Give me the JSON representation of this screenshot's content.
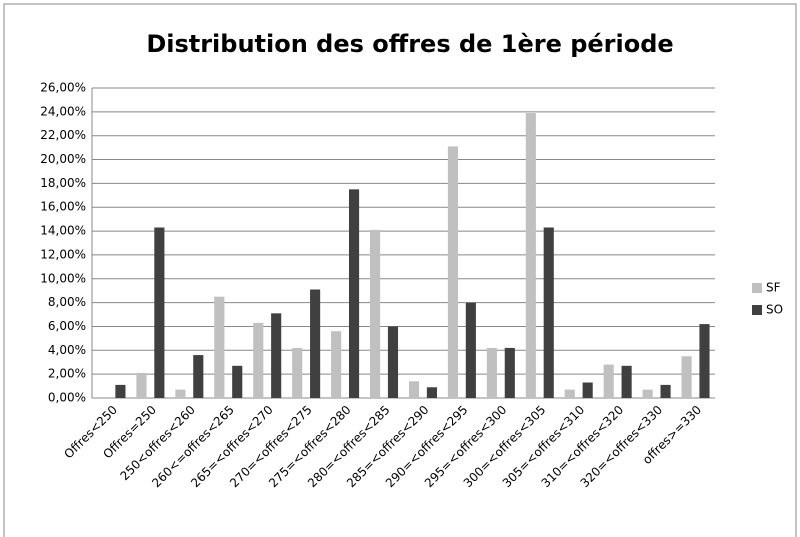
{
  "chart_data": {
    "type": "bar",
    "title": "Distribution des offres de 1ère période",
    "categories": [
      "Offres<250",
      "Offres=250",
      "250<offres<260",
      "260<=offres<265",
      "265=<offres<270",
      "270=<offres<275",
      "275=<offres<280",
      "280=<offres<285",
      "285=<offres<290",
      "290=<offres<295",
      "295=<offres<300",
      "300=<offres<305",
      "305=<offres<310",
      "310=<offres<320",
      "320=<offres<330",
      "offres>=330"
    ],
    "series": [
      {
        "name": "SF",
        "color": "#c0c0c0",
        "values": [
          0,
          2.1,
          0.7,
          8.5,
          6.3,
          4.2,
          5.6,
          14.1,
          1.4,
          21.1,
          4.2,
          23.9,
          0.7,
          2.8,
          0.7,
          3.5
        ]
      },
      {
        "name": "SO",
        "color": "#404040",
        "values": [
          1.1,
          14.3,
          3.6,
          2.7,
          7.1,
          9.1,
          17.5,
          6.0,
          0.9,
          8.0,
          4.2,
          14.3,
          1.3,
          2.7,
          1.1,
          6.2
        ]
      }
    ],
    "ylim": [
      0,
      26
    ],
    "yticks": [
      {
        "value": 0,
        "label": "0,00%"
      },
      {
        "value": 2,
        "label": "2,00%"
      },
      {
        "value": 4,
        "label": "4,00%"
      },
      {
        "value": 6,
        "label": "6,00%"
      },
      {
        "value": 8,
        "label": "8,00%"
      },
      {
        "value": 10,
        "label": "10,00%"
      },
      {
        "value": 12,
        "label": "12,00%"
      },
      {
        "value": 14,
        "label": "14,00%"
      },
      {
        "value": 16,
        "label": "16,00%"
      },
      {
        "value": 18,
        "label": "18,00%"
      },
      {
        "value": 20,
        "label": "20,00%"
      },
      {
        "value": 22,
        "label": "22,00%"
      },
      {
        "value": 24,
        "label": "24,00%"
      },
      {
        "value": 26,
        "label": "26,00%"
      }
    ],
    "grid": true,
    "legend": "right"
  }
}
